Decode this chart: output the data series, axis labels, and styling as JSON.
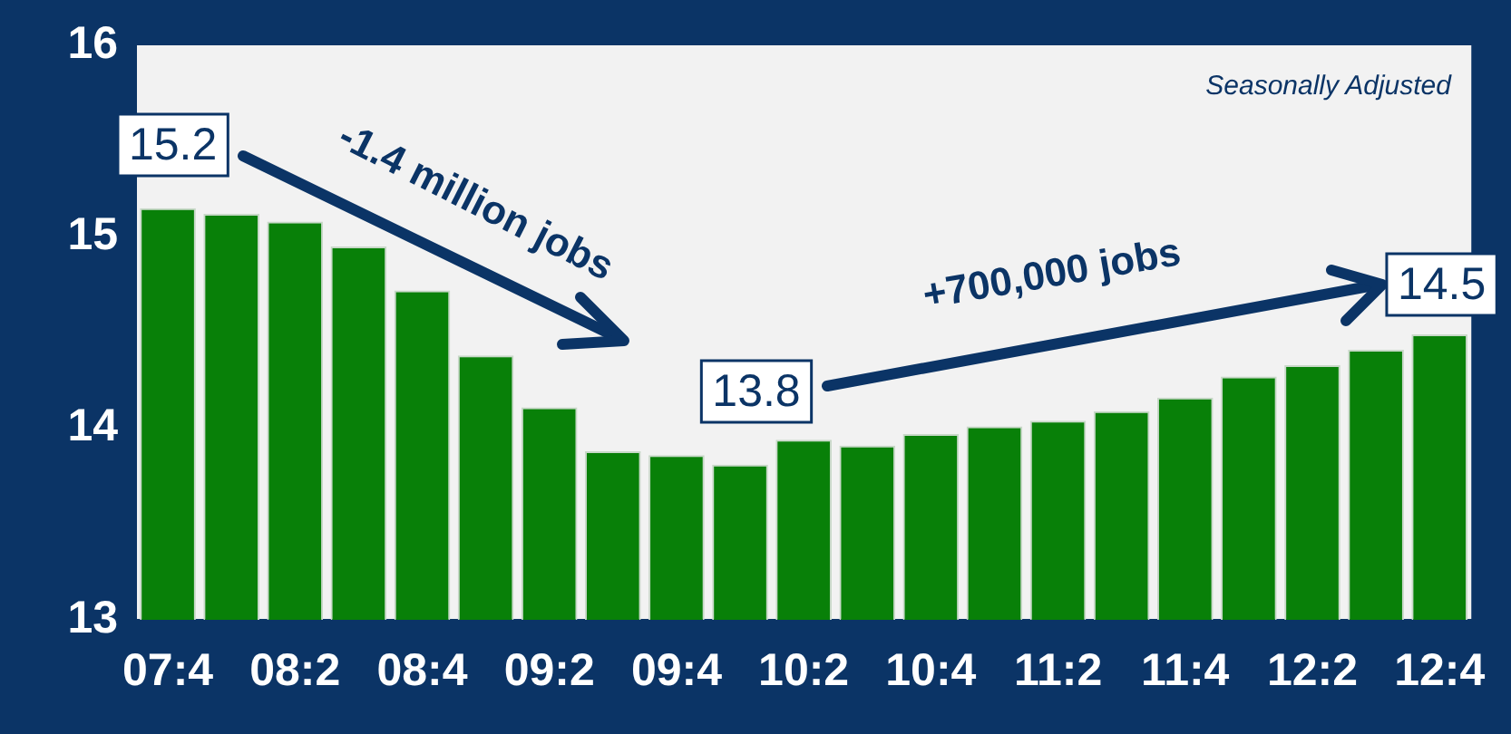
{
  "chart_data": {
    "type": "bar",
    "categories": [
      "07:4",
      null,
      "08:2",
      null,
      "08:4",
      null,
      "09:2",
      null,
      "09:4",
      null,
      "10:2",
      null,
      "10:4",
      null,
      "11:2",
      null,
      "11:4",
      null,
      "12:2",
      null,
      "12:4"
    ],
    "values": [
      15.15,
      15.12,
      15.08,
      14.95,
      14.72,
      14.38,
      14.11,
      13.88,
      13.86,
      13.81,
      13.94,
      13.91,
      13.97,
      14.01,
      14.04,
      14.09,
      14.16,
      14.27,
      14.33,
      14.41,
      14.49
    ],
    "color": "#088008",
    "ylim": [
      13,
      16
    ],
    "yticks": [
      13,
      14,
      15,
      16
    ],
    "grid": false,
    "legend": false,
    "annotations": [
      "Seasonally Adjusted",
      "-1.4 million jobs",
      "+700,000 jobs",
      "15.2",
      "13.8",
      "14.5"
    ]
  }
}
